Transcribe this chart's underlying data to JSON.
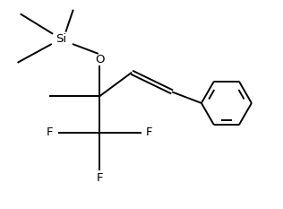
{
  "bg_color": "#ffffff",
  "line_color": "#000000",
  "line_width": 1.4,
  "font_size": 9.5,
  "figsize": [
    3.16,
    2.33
  ],
  "dpi": 100,
  "xlim": [
    0,
    10
  ],
  "ylim": [
    0,
    7.4
  ]
}
